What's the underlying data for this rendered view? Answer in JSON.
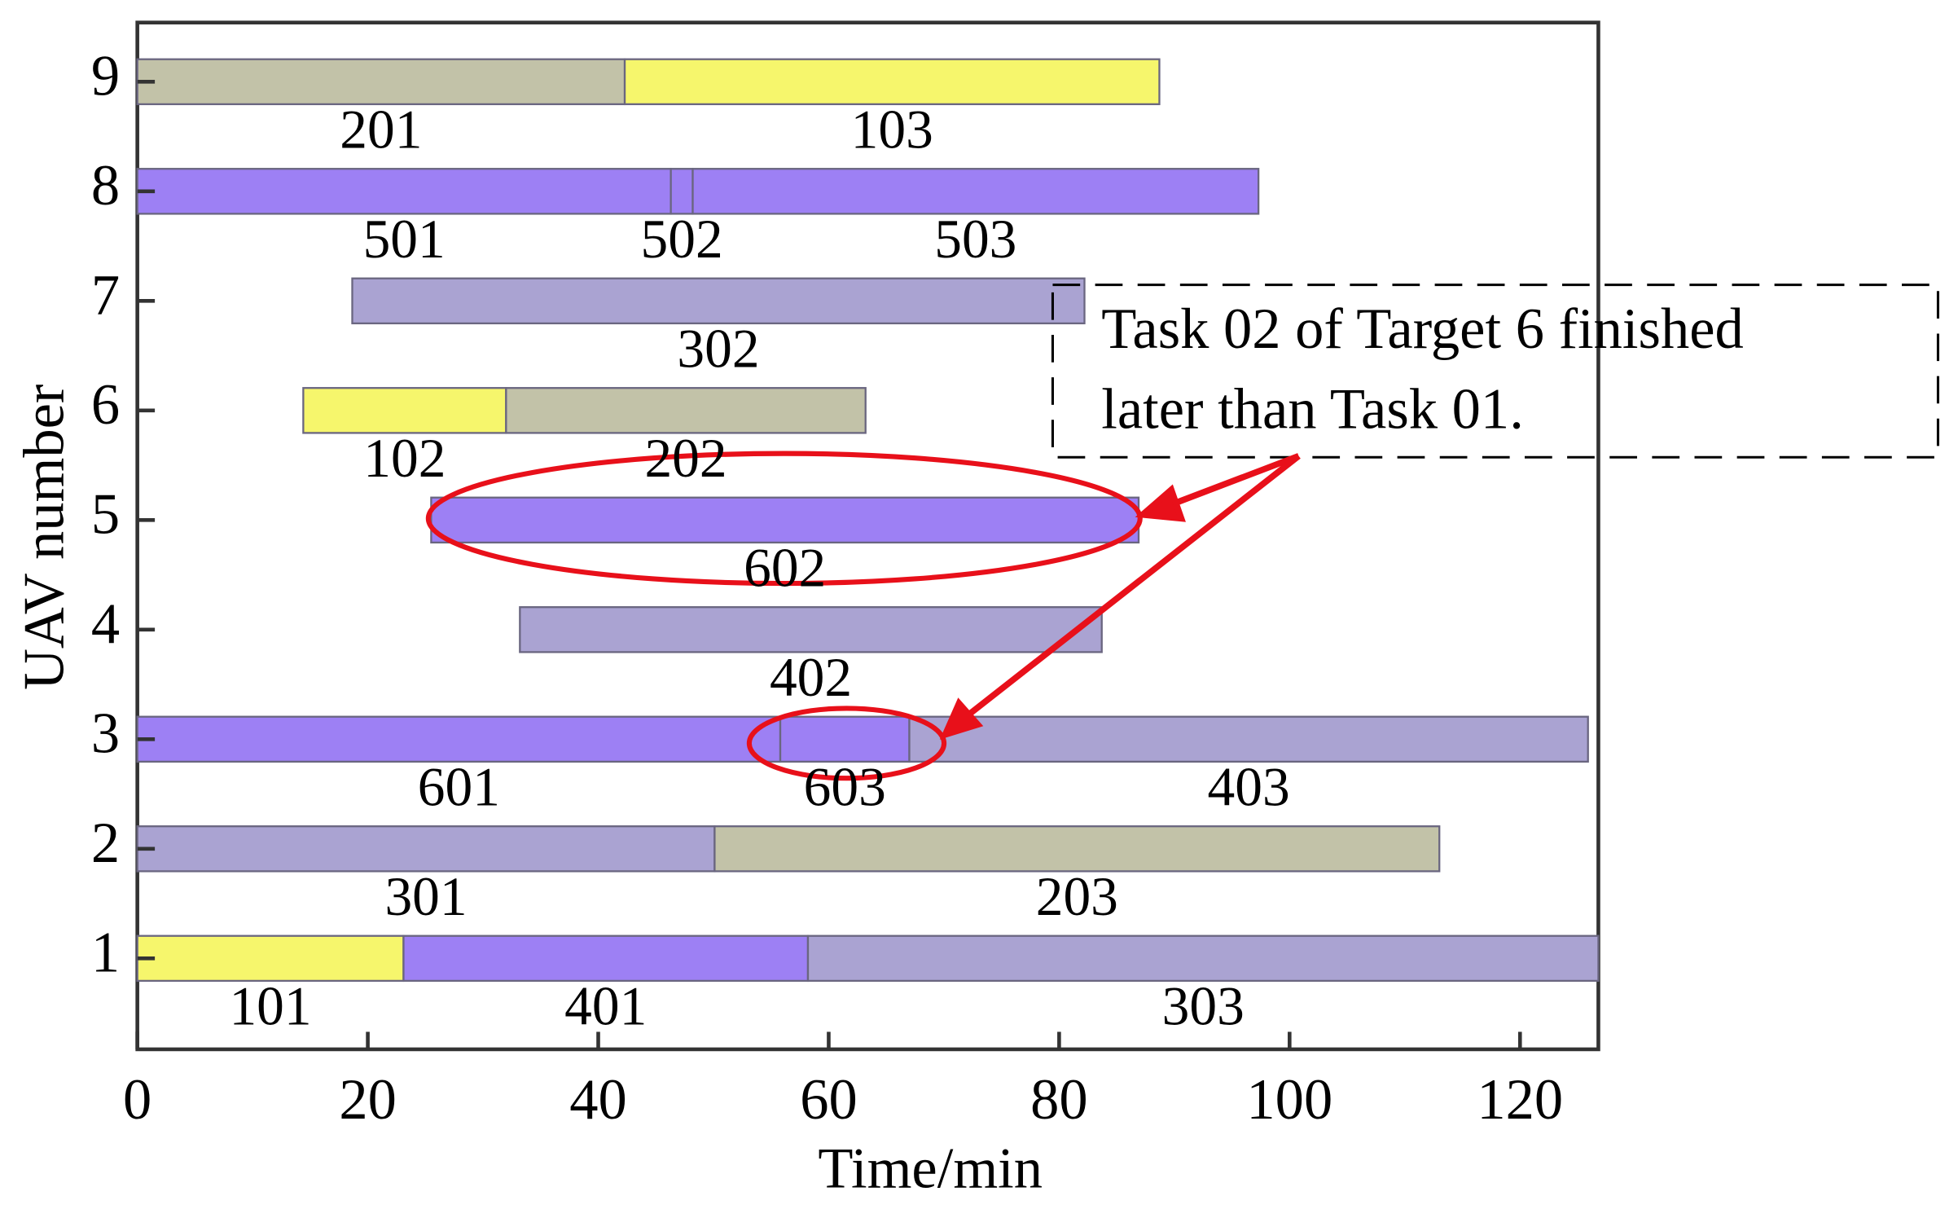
{
  "chart_data": {
    "type": "gantt",
    "x_label": "Time/min",
    "y_label": "UAV number",
    "xlim": [
      0,
      126.8
    ],
    "xticks": [
      0,
      20,
      40,
      60,
      80,
      100,
      120
    ],
    "ylim": [
      0.17,
      9.54
    ],
    "yticks": [
      1,
      2,
      3,
      4,
      5,
      6,
      7,
      8,
      9
    ],
    "tasks": [
      {
        "uav": 9,
        "start": 0,
        "end": 42.3,
        "label": "201",
        "color": "#c2c2a8"
      },
      {
        "uav": 9,
        "start": 42.3,
        "end": 88.7,
        "label": "103",
        "color": "#f6f66c"
      },
      {
        "uav": 8,
        "start": 0,
        "end": 46.3,
        "label": "501",
        "color": "#9d80f4"
      },
      {
        "uav": 8,
        "start": 46.3,
        "end": 48.2,
        "label": "502",
        "color": "#9d80f4"
      },
      {
        "uav": 8,
        "start": 48.2,
        "end": 97.3,
        "label": "503",
        "color": "#9d80f4"
      },
      {
        "uav": 7,
        "start": 18.65,
        "end": 82.2,
        "label": "302",
        "color": "#aaa3d2"
      },
      {
        "uav": 6,
        "start": 14.4,
        "end": 32.0,
        "label": "102",
        "color": "#f6f66c"
      },
      {
        "uav": 6,
        "start": 32.0,
        "end": 63.2,
        "label": "202",
        "color": "#c2c2a8"
      },
      {
        "uav": 5,
        "start": 25.5,
        "end": 86.9,
        "label": "602",
        "color": "#9d80f4"
      },
      {
        "uav": 4,
        "start": 33.2,
        "end": 83.7,
        "label": "402",
        "color": "#aaa3d2"
      },
      {
        "uav": 3,
        "start": 0,
        "end": 55.8,
        "label": "601",
        "color": "#9d80f4"
      },
      {
        "uav": 3,
        "start": 55.8,
        "end": 67.0,
        "label": "603",
        "color": "#9d80f4"
      },
      {
        "uav": 3,
        "start": 67.0,
        "end": 125.9,
        "label": "403",
        "color": "#aaa3d2"
      },
      {
        "uav": 2,
        "start": 0,
        "end": 50.1,
        "label": "301",
        "color": "#aaa3d2"
      },
      {
        "uav": 2,
        "start": 50.1,
        "end": 113.0,
        "label": "203",
        "color": "#c2c2a8"
      },
      {
        "uav": 1,
        "start": 0,
        "end": 23.1,
        "label": "101",
        "color": "#f6f66c"
      },
      {
        "uav": 1,
        "start": 23.1,
        "end": 58.2,
        "label": "401",
        "color": "#9d80f4"
      },
      {
        "uav": 1,
        "start": 58.2,
        "end": 126.8,
        "label": "303",
        "color": "#aaa3d2"
      }
    ],
    "annotation": [
      "Task 02 of Target 6 finished",
      "later than Task 01."
    ]
  }
}
